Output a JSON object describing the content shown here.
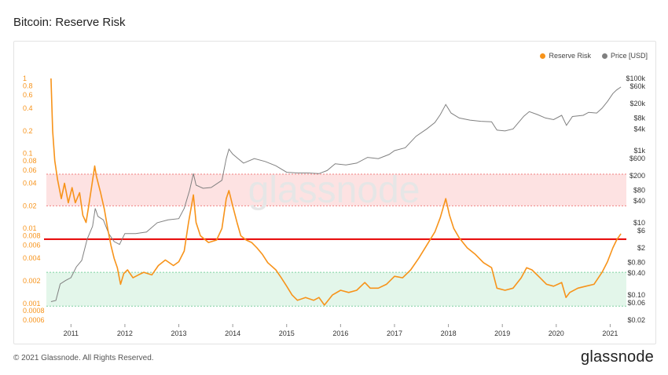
{
  "page_title": "Bitcoin: Reserve Risk",
  "footer_text": "© 2021 Glassnode. All Rights Reserved.",
  "brand_logo": "glassnode",
  "watermark": "glassnode",
  "colors": {
    "reserve_risk": "#f7931a",
    "price": "#808080",
    "threshold_line": "#e60000",
    "upper_band": "#fde2e2",
    "lower_band": "#e3f6ea"
  },
  "chart_data": {
    "type": "line",
    "legend_position": "top-right",
    "series": [
      {
        "name": "Reserve Risk",
        "axis": "left",
        "scale": "log",
        "points": [
          [
            2010.63,
            1.0
          ],
          [
            2010.66,
            0.2
          ],
          [
            2010.7,
            0.08
          ],
          [
            2010.75,
            0.045
          ],
          [
            2010.82,
            0.025
          ],
          [
            2010.88,
            0.04
          ],
          [
            2010.95,
            0.022
          ],
          [
            2011.02,
            0.035
          ],
          [
            2011.08,
            0.022
          ],
          [
            2011.16,
            0.03
          ],
          [
            2011.22,
            0.015
          ],
          [
            2011.28,
            0.012
          ],
          [
            2011.33,
            0.02
          ],
          [
            2011.38,
            0.035
          ],
          [
            2011.44,
            0.068
          ],
          [
            2011.47,
            0.05
          ],
          [
            2011.55,
            0.03
          ],
          [
            2011.62,
            0.018
          ],
          [
            2011.68,
            0.01
          ],
          [
            2011.74,
            0.006
          ],
          [
            2011.8,
            0.004
          ],
          [
            2011.86,
            0.003
          ],
          [
            2011.92,
            0.0018
          ],
          [
            2011.98,
            0.0025
          ],
          [
            2012.05,
            0.0028
          ],
          [
            2012.15,
            0.0022
          ],
          [
            2012.25,
            0.0024
          ],
          [
            2012.35,
            0.0026
          ],
          [
            2012.5,
            0.0024
          ],
          [
            2012.62,
            0.0032
          ],
          [
            2012.75,
            0.0038
          ],
          [
            2012.9,
            0.0032
          ],
          [
            2013.0,
            0.0036
          ],
          [
            2013.1,
            0.005
          ],
          [
            2013.18,
            0.012
          ],
          [
            2013.27,
            0.028
          ],
          [
            2013.32,
            0.012
          ],
          [
            2013.4,
            0.008
          ],
          [
            2013.55,
            0.0065
          ],
          [
            2013.7,
            0.007
          ],
          [
            2013.8,
            0.01
          ],
          [
            2013.88,
            0.025
          ],
          [
            2013.93,
            0.032
          ],
          [
            2014.0,
            0.02
          ],
          [
            2014.08,
            0.012
          ],
          [
            2014.15,
            0.008
          ],
          [
            2014.25,
            0.007
          ],
          [
            2014.35,
            0.0065
          ],
          [
            2014.45,
            0.0055
          ],
          [
            2014.55,
            0.0045
          ],
          [
            2014.65,
            0.0035
          ],
          [
            2014.8,
            0.0028
          ],
          [
            2014.9,
            0.0022
          ],
          [
            2015.0,
            0.0017
          ],
          [
            2015.1,
            0.0013
          ],
          [
            2015.2,
            0.0011
          ],
          [
            2015.35,
            0.0012
          ],
          [
            2015.5,
            0.0011
          ],
          [
            2015.6,
            0.0012
          ],
          [
            2015.7,
            0.00095
          ],
          [
            2015.85,
            0.0013
          ],
          [
            2016.0,
            0.0015
          ],
          [
            2016.15,
            0.0014
          ],
          [
            2016.3,
            0.0015
          ],
          [
            2016.45,
            0.0019
          ],
          [
            2016.55,
            0.0016
          ],
          [
            2016.7,
            0.0016
          ],
          [
            2016.85,
            0.0018
          ],
          [
            2017.0,
            0.0023
          ],
          [
            2017.15,
            0.0022
          ],
          [
            2017.3,
            0.0028
          ],
          [
            2017.45,
            0.004
          ],
          [
            2017.6,
            0.006
          ],
          [
            2017.75,
            0.009
          ],
          [
            2017.85,
            0.014
          ],
          [
            2017.95,
            0.025
          ],
          [
            2018.02,
            0.015
          ],
          [
            2018.1,
            0.01
          ],
          [
            2018.2,
            0.0075
          ],
          [
            2018.35,
            0.0055
          ],
          [
            2018.5,
            0.0045
          ],
          [
            2018.65,
            0.0035
          ],
          [
            2018.8,
            0.003
          ],
          [
            2018.9,
            0.0016
          ],
          [
            2019.05,
            0.0015
          ],
          [
            2019.2,
            0.0016
          ],
          [
            2019.35,
            0.0022
          ],
          [
            2019.45,
            0.003
          ],
          [
            2019.55,
            0.0028
          ],
          [
            2019.7,
            0.0022
          ],
          [
            2019.82,
            0.0018
          ],
          [
            2019.95,
            0.0017
          ],
          [
            2020.1,
            0.0019
          ],
          [
            2020.18,
            0.0012
          ],
          [
            2020.25,
            0.0014
          ],
          [
            2020.4,
            0.0016
          ],
          [
            2020.55,
            0.0017
          ],
          [
            2020.7,
            0.0018
          ],
          [
            2020.85,
            0.0026
          ],
          [
            2020.95,
            0.0036
          ],
          [
            2021.05,
            0.0055
          ],
          [
            2021.12,
            0.007
          ],
          [
            2021.2,
            0.0085
          ]
        ]
      },
      {
        "name": "Price [USD]",
        "axis": "right",
        "scale": "log",
        "points": [
          [
            2010.63,
            0.065
          ],
          [
            2010.72,
            0.07
          ],
          [
            2010.8,
            0.2
          ],
          [
            2010.9,
            0.25
          ],
          [
            2011.0,
            0.3
          ],
          [
            2011.1,
            0.6
          ],
          [
            2011.2,
            0.9
          ],
          [
            2011.3,
            3.5
          ],
          [
            2011.4,
            8
          ],
          [
            2011.45,
            25
          ],
          [
            2011.5,
            15
          ],
          [
            2011.6,
            12
          ],
          [
            2011.7,
            5
          ],
          [
            2011.8,
            3
          ],
          [
            2011.9,
            2.5
          ],
          [
            2012.0,
            5
          ],
          [
            2012.2,
            5
          ],
          [
            2012.4,
            5.5
          ],
          [
            2012.6,
            10
          ],
          [
            2012.8,
            12
          ],
          [
            2013.0,
            13
          ],
          [
            2013.1,
            25
          ],
          [
            2013.2,
            80
          ],
          [
            2013.27,
            230
          ],
          [
            2013.32,
            110
          ],
          [
            2013.45,
            90
          ],
          [
            2013.6,
            95
          ],
          [
            2013.8,
            150
          ],
          [
            2013.88,
            600
          ],
          [
            2013.93,
            1100
          ],
          [
            2014.0,
            800
          ],
          [
            2014.1,
            600
          ],
          [
            2014.2,
            450
          ],
          [
            2014.4,
            600
          ],
          [
            2014.6,
            500
          ],
          [
            2014.8,
            380
          ],
          [
            2015.0,
            250
          ],
          [
            2015.2,
            240
          ],
          [
            2015.4,
            240
          ],
          [
            2015.6,
            230
          ],
          [
            2015.75,
            280
          ],
          [
            2015.9,
            430
          ],
          [
            2016.1,
            400
          ],
          [
            2016.3,
            450
          ],
          [
            2016.5,
            650
          ],
          [
            2016.7,
            600
          ],
          [
            2016.9,
            780
          ],
          [
            2017.0,
            1000
          ],
          [
            2017.2,
            1200
          ],
          [
            2017.4,
            2500
          ],
          [
            2017.6,
            4000
          ],
          [
            2017.75,
            6000
          ],
          [
            2017.85,
            10000
          ],
          [
            2017.95,
            19000
          ],
          [
            2018.05,
            11000
          ],
          [
            2018.2,
            8000
          ],
          [
            2018.4,
            7000
          ],
          [
            2018.6,
            6500
          ],
          [
            2018.8,
            6300
          ],
          [
            2018.9,
            3700
          ],
          [
            2019.05,
            3500
          ],
          [
            2019.2,
            4000
          ],
          [
            2019.4,
            9000
          ],
          [
            2019.5,
            12000
          ],
          [
            2019.65,
            10000
          ],
          [
            2019.8,
            8000
          ],
          [
            2019.95,
            7200
          ],
          [
            2020.1,
            9500
          ],
          [
            2020.19,
            5000
          ],
          [
            2020.3,
            8800
          ],
          [
            2020.5,
            9500
          ],
          [
            2020.6,
            11500
          ],
          [
            2020.75,
            11000
          ],
          [
            2020.85,
            15000
          ],
          [
            2020.95,
            23000
          ],
          [
            2021.05,
            38000
          ],
          [
            2021.12,
            48000
          ],
          [
            2021.2,
            58000
          ]
        ]
      }
    ],
    "x_axis": {
      "range": [
        2010.5,
        2021.3
      ],
      "ticks": [
        "2011",
        "2012",
        "2013",
        "2014",
        "2015",
        "2016",
        "2017",
        "2018",
        "2019",
        "2020",
        "2021"
      ]
    },
    "y_left": {
      "scale": "log",
      "range": [
        0.0006,
        1
      ],
      "ticks": [
        "1",
        "0.8",
        "0.6",
        "0.4",
        "0.2",
        "0.1",
        "0.08",
        "0.06",
        "0.04",
        "0.02",
        "0.01",
        "0.008",
        "0.006",
        "0.004",
        "0.002",
        "0.001",
        "0.0008",
        "0.0006"
      ]
    },
    "y_right": {
      "scale": "log",
      "range": [
        0.02,
        100000
      ],
      "ticks": [
        "$100k",
        "$60k",
        "$20k",
        "$8k",
        "$4k",
        "$1k",
        "$600",
        "$200",
        "$80",
        "$40",
        "$10",
        "$6",
        "$2",
        "$0.80",
        "$0.40",
        "$0.10",
        "$0.06",
        "$0.02"
      ]
    },
    "bands": [
      {
        "name": "upper-band",
        "from": 0.02,
        "to": 0.053
      },
      {
        "name": "lower-band",
        "from": 0.00092,
        "to": 0.0026
      }
    ],
    "threshold": 0.0072,
    "grid": false
  }
}
